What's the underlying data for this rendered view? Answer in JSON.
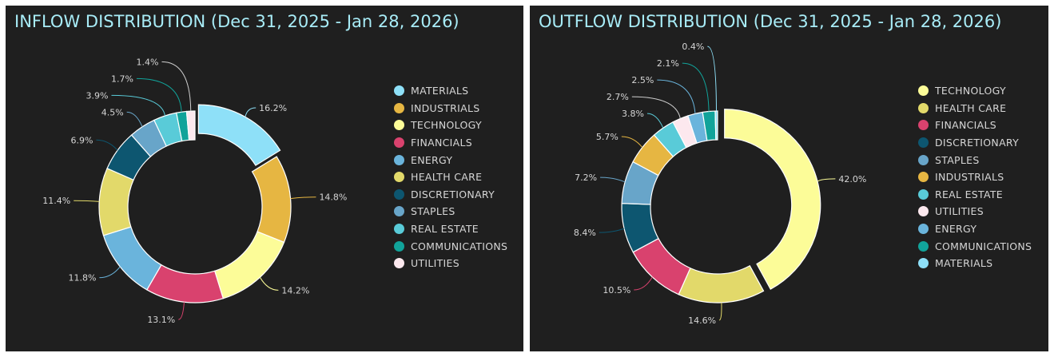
{
  "chart_data": [
    {
      "type": "pie",
      "donut": true,
      "title": "INFLOW DISTRIBUTION (Dec 31, 2025 - Jan 28, 2026)",
      "legend_position": "right",
      "categories": [
        "MATERIALS",
        "INDUSTRIALS",
        "TECHNOLOGY",
        "FINANCIALS",
        "ENERGY",
        "HEALTH CARE",
        "DISCRETIONARY",
        "STAPLES",
        "REAL ESTATE",
        "COMMUNICATIONS",
        "UTILITIES"
      ],
      "values": [
        16.2,
        14.8,
        14.2,
        13.1,
        11.8,
        11.4,
        6.9,
        4.5,
        3.9,
        1.7,
        1.4
      ],
      "labels": [
        "16.2%",
        "14.8%",
        "14.2%",
        "13.1%",
        "11.8%",
        "11.4%",
        "6.9%",
        "4.5%",
        "3.9%",
        "1.7%",
        "1.4%"
      ],
      "colors": [
        "#8ee0f8",
        "#e6b642",
        "#fcfc98",
        "#d9426e",
        "#6ab4dc",
        "#e2d96a",
        "#0d5670",
        "#68a5c9",
        "#59cbd8",
        "#11a39a",
        "#fce8ee"
      ],
      "exploded": "MATERIALS"
    },
    {
      "type": "pie",
      "donut": true,
      "title": "OUTFLOW DISTRIBUTION (Dec 31, 2025 - Jan 28, 2026)",
      "legend_position": "right",
      "categories": [
        "TECHNOLOGY",
        "HEALTH CARE",
        "FINANCIALS",
        "DISCRETIONARY",
        "STAPLES",
        "INDUSTRIALS",
        "REAL ESTATE",
        "UTILITIES",
        "ENERGY",
        "COMMUNICATIONS",
        "MATERIALS"
      ],
      "values": [
        42.0,
        14.6,
        10.5,
        8.4,
        7.2,
        5.7,
        3.8,
        2.7,
        2.5,
        2.1,
        0.4
      ],
      "labels": [
        "42.0%",
        "14.6%",
        "10.5%",
        "8.4%",
        "7.2%",
        "5.7%",
        "3.8%",
        "2.7%",
        "2.5%",
        "2.1%",
        "0.4%"
      ],
      "colors": [
        "#fcfc98",
        "#e2d96a",
        "#d9426e",
        "#0d5670",
        "#68a5c9",
        "#e6b642",
        "#59cbd8",
        "#fce8ee",
        "#6ab4dc",
        "#11a39a",
        "#8ee0f8"
      ],
      "exploded": "TECHNOLOGY"
    }
  ]
}
